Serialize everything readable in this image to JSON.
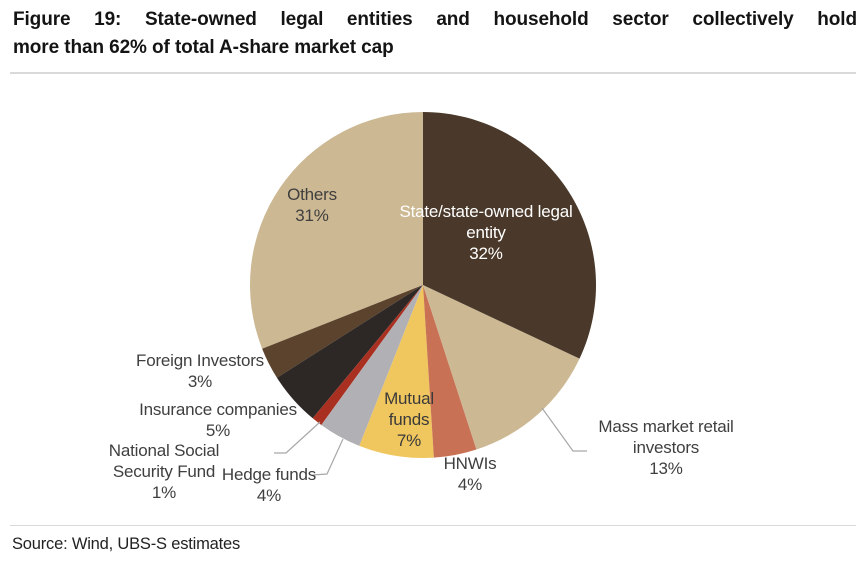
{
  "figure": {
    "title_line1": "Figure 19: State-owned legal entities and household sector collectively hold",
    "title_line2": "more than 62% of total A-share market cap",
    "source": "Source: Wind, UBS-S estimates"
  },
  "chart_data": {
    "type": "pie",
    "title": "Figure 19: State-owned legal entities and household sector collectively hold more than 62% of total A-share market cap",
    "unit": "% of total A-share market cap",
    "start_angle_deg": 0,
    "direction": "clockwise",
    "legend_position": "none",
    "slices": [
      {
        "label": "State/state-owned legal entity",
        "value": 32,
        "color": "#4a392a",
        "label_style": "inside-white"
      },
      {
        "label": "Mass market retail investors",
        "value": 13,
        "color": "#ccb893",
        "label_style": "outside-leader"
      },
      {
        "label": "HNWIs",
        "value": 4,
        "color": "#c87155",
        "label_style": "outside"
      },
      {
        "label": "Mutual funds",
        "value": 7,
        "color": "#f0c75e",
        "label_style": "inside-dark"
      },
      {
        "label": "Hedge funds",
        "value": 4,
        "color": "#b1b0b4",
        "label_style": "outside-leader"
      },
      {
        "label": "National Social Security Fund",
        "value": 1,
        "color": "#a93021",
        "label_style": "outside-leader"
      },
      {
        "label": "Insurance companies",
        "value": 5,
        "color": "#2d2825",
        "label_style": "outside"
      },
      {
        "label": "Foreign Investors",
        "value": 3,
        "color": "#5b432d",
        "label_style": "outside"
      },
      {
        "label": "Others",
        "value": 31,
        "color": "#ccb893",
        "label_style": "inside-dark"
      }
    ],
    "display_labels": {
      "state": "State/state-owned legal\nentity\n32%",
      "mass": "Mass market retail\ninvestors\n13%",
      "hnwis": "HNWIs\n4%",
      "mutual": "Mutual\nfunds\n7%",
      "hedge": "Hedge funds\n4%",
      "nssf": "National Social\nSecurity Fund\n1%",
      "insurance": "Insurance companies\n5%",
      "foreign": "Foreign Investors\n3%",
      "others": "Others\n31%"
    },
    "colors": {
      "leader_line": "#a8a8a8",
      "label_text": "#3f3f3f",
      "inside_label_white": "#ffffff",
      "rule": "#d9d9d9"
    }
  }
}
